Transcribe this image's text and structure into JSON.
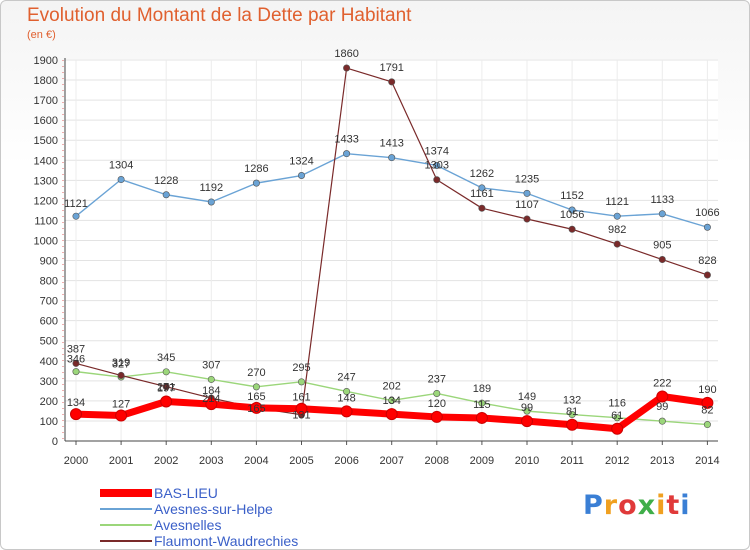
{
  "title": "Evolution du Montant de la Dette par Habitant",
  "subtitle": "(en €)",
  "logo": {
    "text": "Proxiti",
    "colors": [
      "#3a7fd5",
      "#f0a020",
      "#e03a3a",
      "#3fae49"
    ]
  },
  "chart_data": {
    "type": "line",
    "title": "Evolution du Montant de la Dette par Habitant",
    "ylabel": "(en €)",
    "x": [
      "2000",
      "2001",
      "2002",
      "2003",
      "2004",
      "2005",
      "2006",
      "2007",
      "2008",
      "2009",
      "2010",
      "2011",
      "2012",
      "2013",
      "2014"
    ],
    "ylim": [
      0,
      1900
    ],
    "yticks": [
      0,
      100,
      200,
      300,
      400,
      500,
      600,
      700,
      800,
      900,
      1000,
      1100,
      1200,
      1300,
      1400,
      1500,
      1600,
      1700,
      1800,
      1900
    ],
    "grid": true,
    "legend_position": "bottom-left",
    "series": [
      {
        "name": "BAS-LIEU",
        "color": "#ff0000",
        "width": 7,
        "values": [
          134,
          127,
          197,
          184,
          165,
          161,
          148,
          134,
          120,
          115,
          99,
          81,
          61,
          222,
          190
        ]
      },
      {
        "name": "Avesnes-sur-Helpe",
        "color": "#6aa3d5",
        "width": 1.4,
        "values": [
          1121,
          1304,
          1228,
          1192,
          1286,
          1324,
          1433,
          1413,
          1374,
          1262,
          1235,
          1152,
          1121,
          1133,
          1066
        ]
      },
      {
        "name": "Avesnelles",
        "color": "#9bd67a",
        "width": 1.4,
        "values": [
          346,
          319,
          345,
          307,
          270,
          295,
          247,
          202,
          237,
          189,
          149,
          132,
          116,
          99,
          82
        ]
      },
      {
        "name": "Flaumont-Waudrechies",
        "color": "#7a2a2a",
        "width": 1.2,
        "values": [
          387,
          327,
          271,
          214,
          165,
          131,
          1860,
          1791,
          1303,
          1161,
          1107,
          1056,
          982,
          905,
          828
        ]
      }
    ],
    "label_offsets": [
      [
        -8,
        -8,
        -10,
        -10,
        -8,
        -8,
        -10,
        -10,
        -10,
        -10,
        -10,
        -10,
        -10,
        -10,
        -10
      ],
      [
        -9,
        -11,
        -11,
        -11,
        -11,
        -11,
        -11,
        -11,
        -11,
        -11,
        -11,
        -11,
        -11,
        -11,
        -11
      ],
      [
        -9,
        -11,
        -11,
        -11,
        -11,
        -11,
        -11,
        -11,
        -11,
        -11,
        -11,
        -11,
        -11,
        -11,
        -11
      ],
      [
        -11,
        -8,
        4,
        4,
        4,
        4,
        -11,
        -11,
        -11,
        -11,
        -11,
        -11,
        -11,
        -11,
        -11
      ]
    ]
  }
}
